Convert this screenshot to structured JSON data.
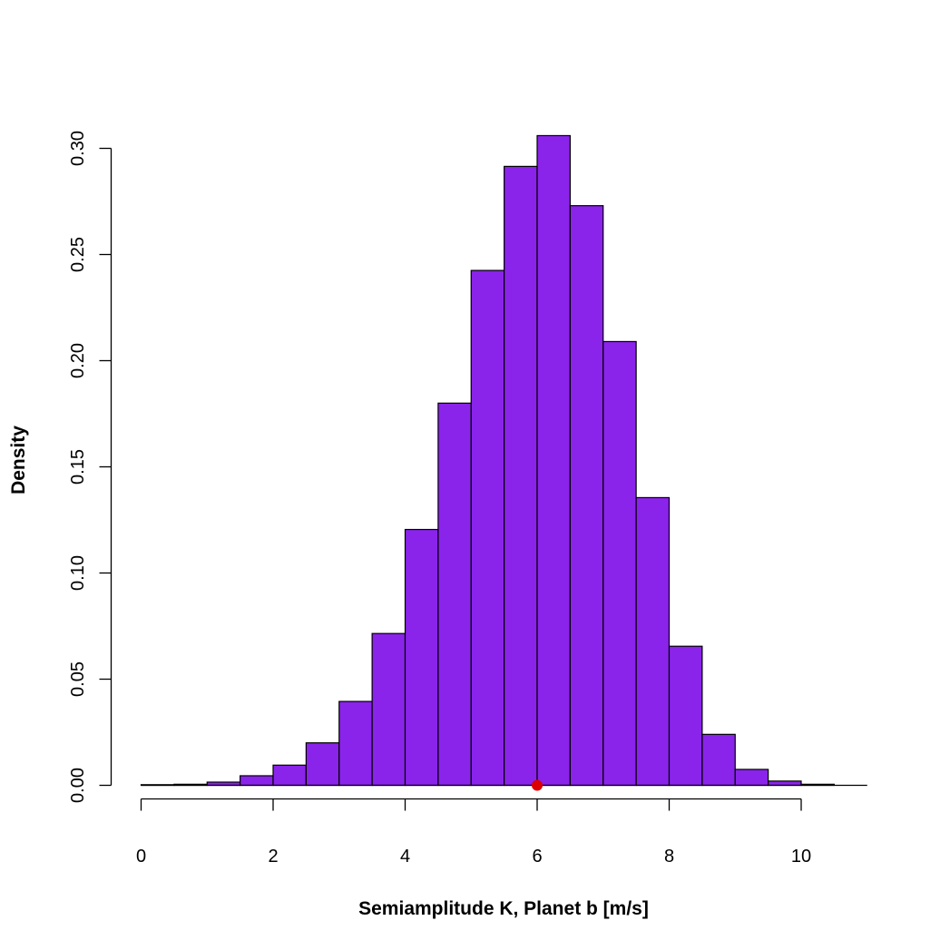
{
  "chart_data": {
    "type": "bar",
    "subtype": "histogram",
    "xlabel": "Semiamplitude K, Planet b [m/s]",
    "ylabel": "Density",
    "bin_width": 0.5,
    "bins": [
      {
        "x0": 0.0,
        "x1": 0.5,
        "density": 0.0003
      },
      {
        "x0": 0.5,
        "x1": 1.0,
        "density": 0.0005
      },
      {
        "x0": 1.0,
        "x1": 1.5,
        "density": 0.0015
      },
      {
        "x0": 1.5,
        "x1": 2.0,
        "density": 0.0045
      },
      {
        "x0": 2.0,
        "x1": 2.5,
        "density": 0.0095
      },
      {
        "x0": 2.5,
        "x1": 3.0,
        "density": 0.02
      },
      {
        "x0": 3.0,
        "x1": 3.5,
        "density": 0.0395
      },
      {
        "x0": 3.5,
        "x1": 4.0,
        "density": 0.0715
      },
      {
        "x0": 4.0,
        "x1": 4.5,
        "density": 0.1205
      },
      {
        "x0": 4.5,
        "x1": 5.0,
        "density": 0.18
      },
      {
        "x0": 5.0,
        "x1": 5.5,
        "density": 0.2425
      },
      {
        "x0": 5.5,
        "x1": 6.0,
        "density": 0.2915
      },
      {
        "x0": 6.0,
        "x1": 6.5,
        "density": 0.306
      },
      {
        "x0": 6.5,
        "x1": 7.0,
        "density": 0.273
      },
      {
        "x0": 7.0,
        "x1": 7.5,
        "density": 0.209
      },
      {
        "x0": 7.5,
        "x1": 8.0,
        "density": 0.1355
      },
      {
        "x0": 8.0,
        "x1": 8.5,
        "density": 0.0655
      },
      {
        "x0": 8.5,
        "x1": 9.0,
        "density": 0.024
      },
      {
        "x0": 9.0,
        "x1": 9.5,
        "density": 0.0075
      },
      {
        "x0": 9.5,
        "x1": 10.0,
        "density": 0.002
      },
      {
        "x0": 10.0,
        "x1": 10.5,
        "density": 0.0005
      },
      {
        "x0": 10.5,
        "x1": 11.0,
        "density": 0.0
      }
    ],
    "marker": {
      "x": 6.0,
      "y": 0.0,
      "color": "#dd0000"
    },
    "xlim": [
      0,
      11
    ],
    "ylim": [
      0,
      0.3
    ],
    "xticks": [
      0,
      2,
      4,
      6,
      8,
      10
    ],
    "xtick_labels": [
      "0",
      "2",
      "4",
      "6",
      "8",
      "10"
    ],
    "yticks": [
      0.0,
      0.05,
      0.1,
      0.15,
      0.2,
      0.25,
      0.3
    ],
    "ytick_labels": [
      "0.00",
      "0.05",
      "0.10",
      "0.15",
      "0.20",
      "0.25",
      "0.30"
    ],
    "bar_color": "#8a24ea",
    "grid": false
  }
}
